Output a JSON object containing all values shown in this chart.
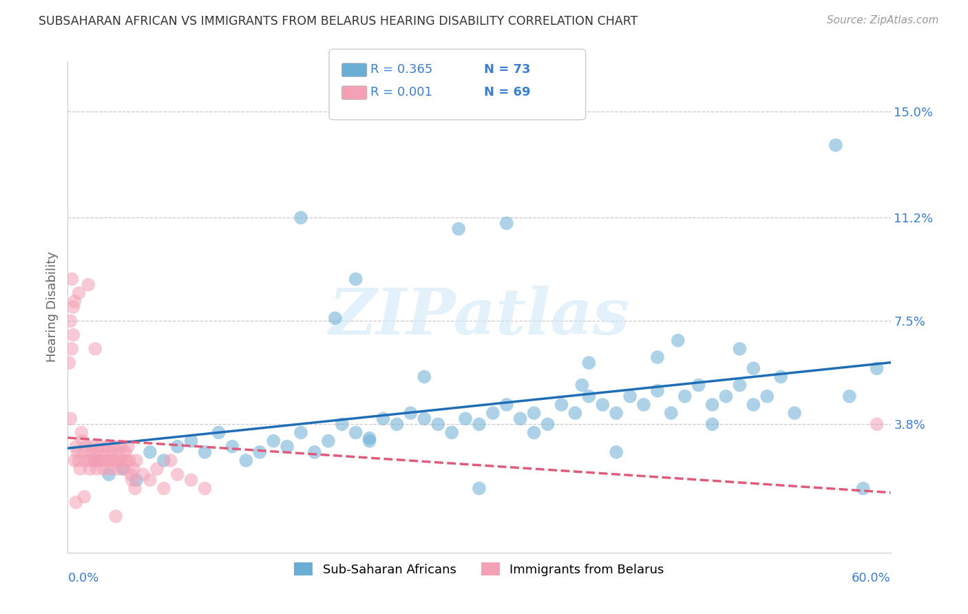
{
  "title": "SUBSAHARAN AFRICAN VS IMMIGRANTS FROM BELARUS HEARING DISABILITY CORRELATION CHART",
  "source": "Source: ZipAtlas.com",
  "ylabel": "Hearing Disability",
  "xlim": [
    0.0,
    0.6
  ],
  "ylim": [
    -0.008,
    0.168
  ],
  "legend_r1": "R = 0.365",
  "legend_n1": "N = 73",
  "legend_r2": "R = 0.001",
  "legend_n2": "N = 69",
  "color_blue": "#6aaed6",
  "color_pink": "#f4a0b5",
  "color_line_blue": "#1f6eb5",
  "color_line_pink": "#e05a7a",
  "color_grid": "#c8c8d0",
  "color_text_blue": "#3a7fd5",
  "watermark": "ZIPatlas",
  "series1_name": "Sub-Saharan Africans",
  "series2_name": "Immigrants from Belarus",
  "blue_x": [
    0.02,
    0.03,
    0.04,
    0.05,
    0.06,
    0.07,
    0.08,
    0.09,
    0.1,
    0.11,
    0.12,
    0.13,
    0.14,
    0.15,
    0.16,
    0.17,
    0.18,
    0.19,
    0.2,
    0.21,
    0.22,
    0.23,
    0.24,
    0.25,
    0.26,
    0.27,
    0.28,
    0.29,
    0.3,
    0.31,
    0.32,
    0.33,
    0.34,
    0.35,
    0.36,
    0.37,
    0.38,
    0.39,
    0.4,
    0.41,
    0.42,
    0.43,
    0.44,
    0.45,
    0.46,
    0.47,
    0.48,
    0.49,
    0.5,
    0.51,
    0.285,
    0.32,
    0.17,
    0.21,
    0.38,
    0.445,
    0.375,
    0.43,
    0.49,
    0.52,
    0.56,
    0.59,
    0.3,
    0.195,
    0.26,
    0.22,
    0.34,
    0.4,
    0.47,
    0.53,
    0.57,
    0.5,
    0.58
  ],
  "blue_y": [
    0.025,
    0.02,
    0.022,
    0.018,
    0.028,
    0.025,
    0.03,
    0.032,
    0.028,
    0.035,
    0.03,
    0.025,
    0.028,
    0.032,
    0.03,
    0.035,
    0.028,
    0.032,
    0.038,
    0.035,
    0.033,
    0.04,
    0.038,
    0.042,
    0.04,
    0.038,
    0.035,
    0.04,
    0.038,
    0.042,
    0.045,
    0.04,
    0.042,
    0.038,
    0.045,
    0.042,
    0.048,
    0.045,
    0.042,
    0.048,
    0.045,
    0.05,
    0.042,
    0.048,
    0.052,
    0.045,
    0.048,
    0.052,
    0.045,
    0.048,
    0.108,
    0.11,
    0.112,
    0.09,
    0.06,
    0.068,
    0.052,
    0.062,
    0.065,
    0.055,
    0.138,
    0.058,
    0.015,
    0.076,
    0.055,
    0.032,
    0.035,
    0.028,
    0.038,
    0.042,
    0.048,
    0.058,
    0.015
  ],
  "pink_x": [
    0.001,
    0.002,
    0.003,
    0.004,
    0.005,
    0.006,
    0.007,
    0.008,
    0.009,
    0.01,
    0.011,
    0.012,
    0.013,
    0.014,
    0.015,
    0.016,
    0.017,
    0.018,
    0.019,
    0.02,
    0.021,
    0.022,
    0.023,
    0.024,
    0.025,
    0.026,
    0.027,
    0.028,
    0.029,
    0.03,
    0.031,
    0.032,
    0.033,
    0.034,
    0.035,
    0.036,
    0.037,
    0.038,
    0.039,
    0.04,
    0.041,
    0.042,
    0.043,
    0.044,
    0.045,
    0.046,
    0.047,
    0.048,
    0.049,
    0.05,
    0.055,
    0.06,
    0.065,
    0.07,
    0.075,
    0.08,
    0.09,
    0.1,
    0.004,
    0.008,
    0.003,
    0.005,
    0.015,
    0.02,
    0.59,
    0.035,
    0.002,
    0.006,
    0.012
  ],
  "pink_y": [
    0.06,
    0.075,
    0.065,
    0.07,
    0.025,
    0.03,
    0.028,
    0.025,
    0.022,
    0.035,
    0.032,
    0.028,
    0.025,
    0.03,
    0.025,
    0.022,
    0.028,
    0.025,
    0.03,
    0.025,
    0.022,
    0.028,
    0.025,
    0.03,
    0.025,
    0.022,
    0.028,
    0.025,
    0.03,
    0.025,
    0.022,
    0.028,
    0.025,
    0.03,
    0.025,
    0.022,
    0.028,
    0.025,
    0.03,
    0.025,
    0.022,
    0.028,
    0.025,
    0.03,
    0.025,
    0.02,
    0.018,
    0.022,
    0.015,
    0.025,
    0.02,
    0.018,
    0.022,
    0.015,
    0.025,
    0.02,
    0.018,
    0.015,
    0.08,
    0.085,
    0.09,
    0.082,
    0.088,
    0.065,
    0.038,
    0.005,
    0.04,
    0.01,
    0.012
  ]
}
